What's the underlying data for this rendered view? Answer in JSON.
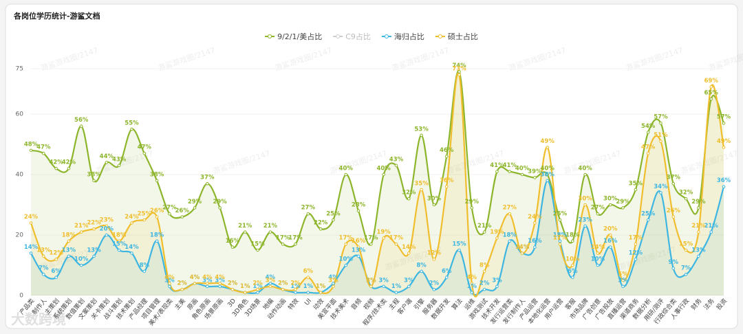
{
  "chart_data": {
    "type": "line",
    "title": "各岗位学历统计-游鲨文档",
    "watermark": "游鲨游戏圈/2147",
    "corner_watermark": "大数跨境",
    "categories": [
      "产品类",
      "制作人",
      "主策划",
      "系统策划",
      "数值策划",
      "文案策划",
      "关卡策划",
      "战斗策划",
      "技术策划",
      "产品经理",
      "项目管理",
      "美术/表现类",
      "主美",
      "原画",
      "角色原画",
      "场景原画",
      "3D",
      "3D角色",
      "3D场景",
      "地编",
      "动作动画",
      "特效",
      "UI",
      "动效",
      "美宣平面",
      "技术美术",
      "音频",
      "视频",
      "程序/技术类",
      "主程",
      "客户端",
      "引擎",
      "服务器",
      "数据开发",
      "算法",
      "运维",
      "游戏测试",
      "技术开发",
      "发行运营类",
      "发行制作人",
      "产品运营",
      "本地化运营",
      "用户运营",
      "客服",
      "市场品牌",
      "广告创意",
      "广告投放",
      "直播运营",
      "渠道商务",
      "数据分析",
      "用研/测评",
      "行政综合类",
      "人事行政",
      "财务",
      "法务",
      "投资"
    ],
    "series": [
      {
        "name": "9/2/1/美占比",
        "color": "#8db52b",
        "values": [
          48,
          47,
          42,
          42,
          56,
          38,
          44,
          43,
          55,
          47,
          38,
          27,
          26,
          29,
          37,
          29,
          16,
          21,
          15,
          21,
          17,
          17,
          27,
          22,
          25,
          40,
          28,
          17,
          40,
          43,
          32,
          53,
          30,
          46,
          74,
          29,
          21,
          41,
          41,
          40,
          39,
          40,
          25,
          18,
          40,
          27,
          30,
          29,
          35,
          54,
          57,
          37,
          32,
          29,
          65,
          57
        ],
        "value_labels": [
          "48%",
          "47%",
          "42%",
          "42%",
          "56%",
          "38%",
          "44%",
          "43%",
          "55%",
          "47%",
          "38%",
          "27%",
          "26%",
          "29%",
          "37%",
          "29%",
          "16%",
          "21%",
          "15%",
          "21%",
          "17%",
          "17%",
          "27%",
          "22%",
          "25%",
          "40%",
          "28%",
          "17%",
          "40%",
          "43%",
          "32%",
          "53%",
          "30%",
          "46%",
          "74%",
          "29%",
          "21%",
          "41%",
          "41%",
          "40%",
          "39%",
          "40%",
          "25%",
          "18%",
          "40%",
          "27%",
          "30%",
          "29%",
          "35%",
          "54%",
          "57%",
          "37%",
          "32%",
          "29%",
          "65%",
          "57%"
        ]
      },
      {
        "name": "C9占比",
        "color": "#c8c8c8",
        "hidden": true,
        "values": [
          null,
          null,
          null,
          null,
          null,
          null,
          null,
          null,
          null,
          null,
          null,
          null,
          null,
          null,
          null,
          null,
          null,
          null,
          null,
          null,
          null,
          null,
          null,
          null,
          null,
          null,
          null,
          null,
          null,
          null,
          null,
          null,
          null,
          null,
          null,
          null,
          null,
          null,
          null,
          null,
          null,
          null,
          null,
          null,
          null,
          null,
          null,
          null,
          null,
          null,
          null,
          null,
          null,
          null,
          null,
          null
        ]
      },
      {
        "name": "海归占比",
        "color": "#3db6e2",
        "values": [
          14,
          7,
          6,
          13,
          10,
          13,
          20,
          15,
          14,
          8,
          18,
          3,
          2,
          4,
          3,
          3,
          2,
          1,
          1,
          4,
          2,
          1,
          1,
          1,
          4,
          10,
          13,
          3,
          3,
          1,
          3,
          8,
          2,
          6,
          15,
          1,
          2,
          3,
          18,
          14,
          16,
          38,
          18,
          6,
          23,
          10,
          16,
          3,
          12,
          25,
          34,
          9,
          7,
          13,
          21,
          36
        ],
        "value_labels": [
          "14%",
          "7%",
          "6%",
          "13%",
          "10%",
          "13%",
          "20%",
          "15%",
          "14%",
          "8%",
          "18%",
          "3%",
          "2%",
          "4%",
          "3%",
          "3%",
          "2%",
          "1%",
          "1%",
          "4%",
          "2%",
          "1%",
          "1%",
          "1%",
          "4%",
          "10%",
          "13%",
          "3%",
          "3%",
          "1%",
          "3%",
          "8%",
          "2%",
          "6%",
          "15%",
          "1%",
          "2%",
          "3%",
          "18%",
          "14%",
          "16%",
          "38%",
          "18%",
          "6%",
          "23%",
          "10%",
          "16%",
          "3%",
          "12%",
          "25%",
          "34%",
          "9%",
          "7%",
          "13%",
          "21%",
          "36%"
        ]
      },
      {
        "name": "硕士占比",
        "color": "#f0be2c",
        "values": [
          24,
          13,
          12,
          18,
          21,
          22,
          23,
          18,
          24,
          25,
          26,
          4,
          2,
          4,
          4,
          4,
          2,
          1,
          2,
          3,
          2,
          2,
          6,
          1,
          3,
          17,
          16,
          3,
          19,
          17,
          14,
          35,
          12,
          36,
          73,
          4,
          8,
          19,
          27,
          14,
          24,
          49,
          17,
          10,
          30,
          14,
          20,
          5,
          17,
          47,
          51,
          26,
          15,
          21,
          69,
          49
        ],
        "value_labels": [
          "24%",
          "13%",
          "12%",
          "18%",
          "21%",
          "22%",
          "23%",
          "18%",
          "24%",
          "25%",
          "26%",
          "4%",
          "2%",
          "4%",
          "4%",
          "4%",
          "2%",
          "1%",
          "2%",
          "3%",
          "2%",
          "2%",
          "6%",
          "1%",
          "3%",
          "17%",
          "16%",
          "3%",
          "19%",
          "17%",
          "14%",
          "35%",
          "12%",
          "36%",
          "73%",
          "4%",
          "8%",
          "19%",
          "27%",
          "14%",
          "24%",
          "49%",
          "17%",
          "10%",
          "30%",
          "14%",
          "20%",
          "5%",
          "17%",
          "47%",
          "51%",
          "26%",
          "15%",
          "21%",
          "69%",
          "49%"
        ]
      }
    ],
    "ylim": [
      0,
      75
    ],
    "yticks": [
      0,
      20,
      40,
      60,
      75
    ],
    "grid": true,
    "legend": "top"
  }
}
